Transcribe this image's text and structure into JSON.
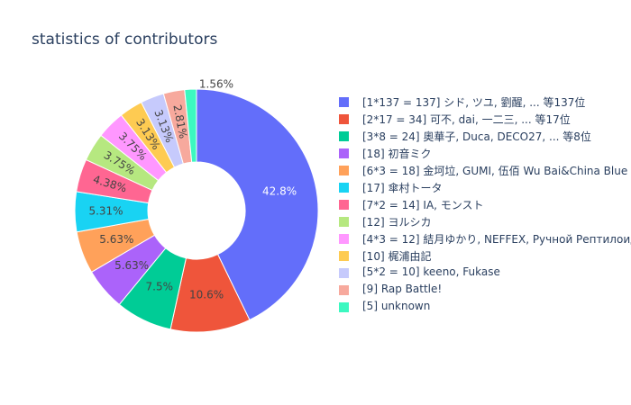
{
  "chart_data": {
    "type": "pie",
    "hole": true,
    "title": "statistics of contributors",
    "legend_position": "right",
    "slices": [
      {
        "label": "[1*137 = 137] シド, ツユ, 劉醒, ... 等137位",
        "value": 137,
        "percent": "42.8%",
        "color": "#636efa",
        "text_color": "#ffffff",
        "text_position": "inside"
      },
      {
        "label": "[2*17 = 34] 可不, dai, 一二三, ... 等17位",
        "value": 34,
        "percent": "10.6%",
        "color": "#ef553b",
        "text_color": "#444444",
        "text_position": "inside"
      },
      {
        "label": "[3*8 = 24] 奧華子, Duca, DECO27, ... 等8位",
        "value": 24,
        "percent": "7.5%",
        "color": "#00cc96",
        "text_color": "#444444",
        "text_position": "inside"
      },
      {
        "label": "[18] 初音ミク",
        "value": 18,
        "percent": "5.63%",
        "color": "#ab63fa",
        "text_color": "#444444",
        "text_position": "inside"
      },
      {
        "label": "[6*3 = 18] 金坷垃, GUMI, 伍佰 Wu Bai&China Blue",
        "value": 18,
        "percent": "5.63%",
        "color": "#ffa15a",
        "text_color": "#444444",
        "text_position": "inside"
      },
      {
        "label": "[17] 傘村トータ",
        "value": 17,
        "percent": "5.31%",
        "color": "#19d3f3",
        "text_color": "#444444",
        "text_position": "inside"
      },
      {
        "label": "[7*2 = 14] IA, モンスト",
        "value": 14,
        "percent": "4.38%",
        "color": "#ff6692",
        "text_color": "#444444",
        "text_position": "inside"
      },
      {
        "label": "[12] ヨルシカ",
        "value": 12,
        "percent": "3.75%",
        "color": "#b6e880",
        "text_color": "#444444",
        "text_position": "inside"
      },
      {
        "label": "[4*3 = 12] 結月ゆかり, NEFFEX, Ручной Рептилоид",
        "value": 12,
        "percent": "3.75%",
        "color": "#ff97ff",
        "text_color": "#444444",
        "text_position": "inside"
      },
      {
        "label": "[10] 梶浦由記",
        "value": 10,
        "percent": "3.13%",
        "color": "#fecb52",
        "text_color": "#444444",
        "text_position": "inside"
      },
      {
        "label": "[5*2 = 10] keeno, Fukase",
        "value": 10,
        "percent": "3.13%",
        "color": "#c6cafc",
        "text_color": "#444444",
        "text_position": "inside"
      },
      {
        "label": "[9] Rap Battle!",
        "value": 9,
        "percent": "2.81%",
        "color": "#f7a99d",
        "text_color": "#444444",
        "text_position": "inside"
      },
      {
        "label": "[5] unknown",
        "value": 5,
        "percent": "1.56%",
        "color": "#3cf8c0",
        "text_color": "#444444",
        "text_position": "outside"
      }
    ]
  }
}
